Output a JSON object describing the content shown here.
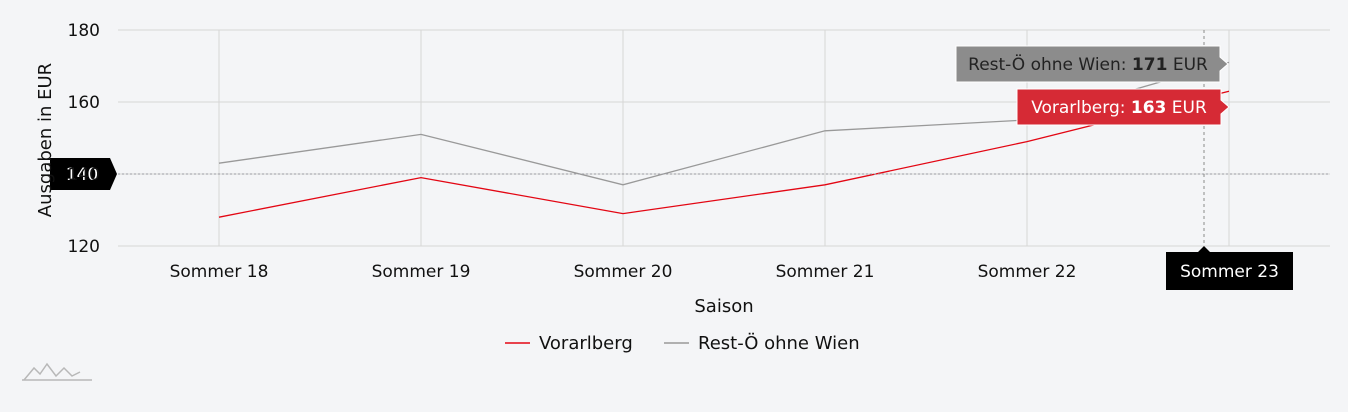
{
  "chart_data": {
    "type": "line",
    "categories": [
      "Sommer 18",
      "Sommer 19",
      "Sommer 20",
      "Sommer 21",
      "Sommer 22",
      "Sommer 23"
    ],
    "series": [
      {
        "name": "Vorarlberg",
        "color": "#e30613",
        "values": [
          128,
          139,
          129,
          137,
          149,
          163
        ]
      },
      {
        "name": "Rest-Ö ohne Wien",
        "color": "#999999",
        "values": [
          143,
          151,
          137,
          152,
          155,
          171
        ]
      }
    ],
    "xlabel": "Saison",
    "ylabel": "Ausgaben in EUR",
    "ylim": [
      120,
      180
    ],
    "yticks": [
      120,
      140,
      160,
      180
    ],
    "grid": true,
    "legend": "bottom-center",
    "crosshair": {
      "y_value": 140,
      "y_label": "140",
      "x_label": "Sommer 23"
    },
    "tooltips": [
      {
        "series_name": "Rest-Ö ohne Wien",
        "value_text": "171",
        "unit": "EUR",
        "bg": "#8c8c8c",
        "fg": "#222222"
      },
      {
        "series_name": "Vorarlberg",
        "value_text": "163",
        "unit": "EUR",
        "bg": "#d62a35",
        "fg": "#ffffff"
      }
    ]
  }
}
